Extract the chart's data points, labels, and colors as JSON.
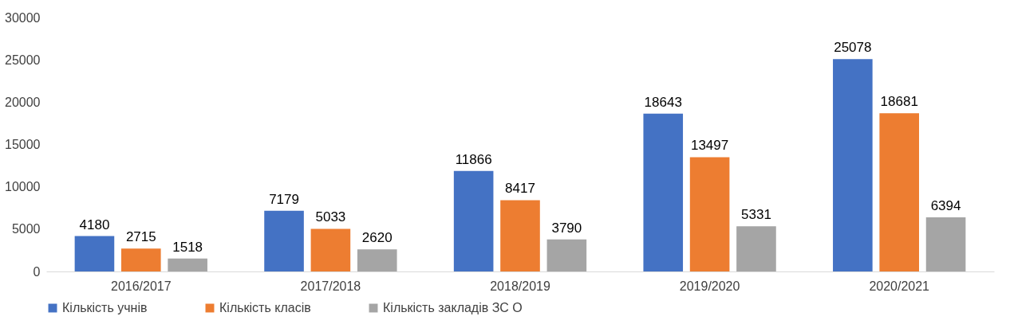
{
  "chart_data": {
    "type": "bar",
    "categories": [
      "2016/2017",
      "2017/2018",
      "2018/2019",
      "2019/2020",
      "2020/2021"
    ],
    "series": [
      {
        "name": "Кількість учнів",
        "color": "#4472c4",
        "values": [
          4180,
          7179,
          11866,
          18643,
          25078
        ]
      },
      {
        "name": "Кількість класів",
        "color": "#ed7d31",
        "values": [
          2715,
          5033,
          8417,
          13497,
          18681
        ]
      },
      {
        "name": "Кількість закладів ЗС О",
        "color": "#a5a5a5",
        "values": [
          1518,
          2620,
          3790,
          5331,
          6394
        ]
      }
    ],
    "ylim": [
      0,
      30000
    ],
    "yticks": [
      0,
      5000,
      10000,
      15000,
      20000,
      25000,
      30000
    ],
    "grid": false,
    "legend": "bottom",
    "data_labels": true
  }
}
